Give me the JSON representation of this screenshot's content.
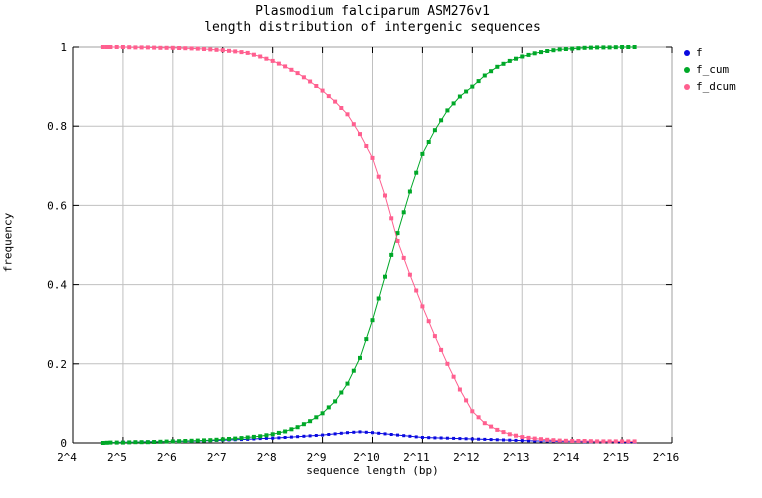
{
  "chart_data": {
    "type": "line",
    "title": "Plasmodium falciparum ASM276v1",
    "subtitle": "length distribution of intergenic sequences",
    "xlabel": "sequence length (bp)",
    "ylabel": "frequency",
    "x_scale": "log2",
    "xlim_labels": [
      "2^4",
      "2^16"
    ],
    "ylim": [
      0,
      1
    ],
    "grid": true,
    "legend_position": "outside-right-top",
    "x_tick_exponents": [
      4,
      5,
      6,
      7,
      8,
      9,
      10,
      11,
      12,
      13,
      14,
      15,
      16
    ],
    "x_tick_labels": [
      "2^4",
      "2^5",
      "2^6",
      "2^7",
      "2^8",
      "2^9",
      "2^10",
      "2^11",
      "2^12",
      "2^13",
      "2^14",
      "2^15",
      "2^16"
    ],
    "y_ticks": [
      0,
      0.2,
      0.4,
      0.6,
      0.8,
      1
    ],
    "y_tick_labels": [
      "0",
      "0.2",
      "0.4",
      "0.6",
      "0.8",
      "1"
    ],
    "x_log2": [
      4.6,
      4.75,
      5.0,
      5.25,
      5.5,
      5.75,
      6.0,
      6.25,
      6.5,
      6.75,
      7.0,
      7.25,
      7.5,
      7.75,
      8.0,
      8.25,
      8.5,
      8.75,
      9.0,
      9.25,
      9.5,
      9.75,
      10.0,
      10.25,
      10.5,
      10.75,
      11.0,
      11.25,
      11.5,
      11.75,
      12.0,
      12.25,
      12.5,
      12.75,
      13.0,
      13.25,
      13.5,
      13.75,
      14.0,
      14.25,
      14.5,
      14.75,
      15.0,
      15.25
    ],
    "series": [
      {
        "name": "f",
        "color": "#0a0ae0",
        "marker_px": 3,
        "values": [
          0.001,
          0.001,
          0.002,
          0.002,
          0.003,
          0.003,
          0.004,
          0.004,
          0.005,
          0.006,
          0.007,
          0.008,
          0.009,
          0.011,
          0.012,
          0.014,
          0.016,
          0.018,
          0.02,
          0.023,
          0.026,
          0.028,
          0.026,
          0.023,
          0.02,
          0.017,
          0.014,
          0.013,
          0.012,
          0.011,
          0.01,
          0.009,
          0.008,
          0.007,
          0.006,
          0.005,
          0.005,
          0.004,
          0.004,
          0.003,
          0.003,
          0.003,
          0.002,
          0.002
        ]
      },
      {
        "name": "f_cum",
        "color": "#00a828",
        "marker_px": 4,
        "values": [
          0.0,
          0.001,
          0.001,
          0.002,
          0.002,
          0.003,
          0.004,
          0.005,
          0.006,
          0.007,
          0.009,
          0.011,
          0.014,
          0.017,
          0.022,
          0.029,
          0.04,
          0.055,
          0.075,
          0.105,
          0.15,
          0.215,
          0.31,
          0.42,
          0.53,
          0.635,
          0.73,
          0.79,
          0.84,
          0.875,
          0.9,
          0.928,
          0.95,
          0.965,
          0.976,
          0.984,
          0.99,
          0.994,
          0.996,
          0.998,
          0.999,
          0.999,
          1.0,
          1.0
        ]
      },
      {
        "name": "f_dcum",
        "color": "#ff5f8f",
        "marker_px": 4,
        "values": [
          1.0,
          1.0,
          1.0,
          0.999,
          0.999,
          0.998,
          0.998,
          0.997,
          0.996,
          0.994,
          0.992,
          0.989,
          0.985,
          0.976,
          0.965,
          0.951,
          0.934,
          0.913,
          0.89,
          0.862,
          0.83,
          0.78,
          0.72,
          0.625,
          0.51,
          0.425,
          0.345,
          0.27,
          0.2,
          0.135,
          0.08,
          0.05,
          0.033,
          0.022,
          0.015,
          0.011,
          0.008,
          0.006,
          0.005,
          0.005,
          0.004,
          0.004,
          0.004,
          0.004
        ]
      }
    ],
    "colors": {
      "background": "#ffffff",
      "grid": "#c0c0c0",
      "axis": "#000000",
      "border_top_right": "#a0a0a0",
      "text": "#000000"
    }
  }
}
